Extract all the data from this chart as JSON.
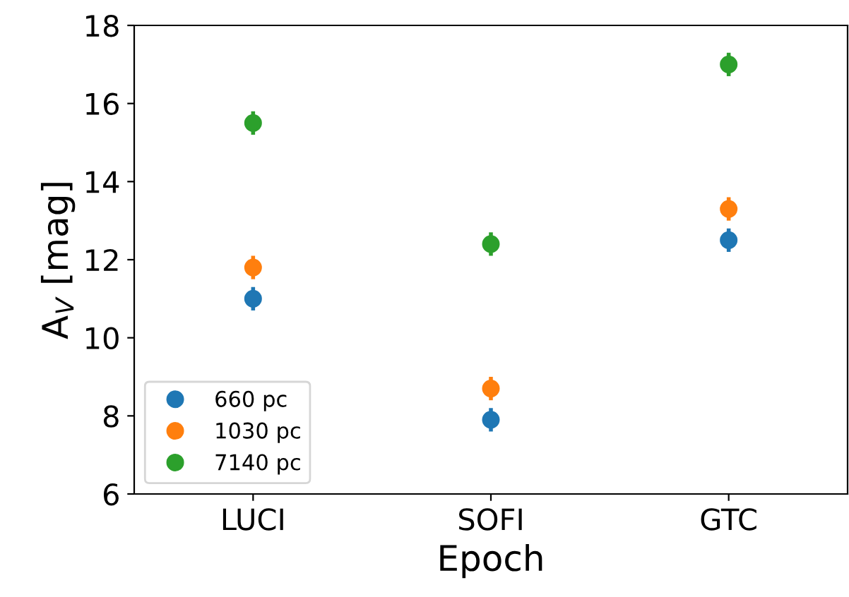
{
  "chart_data": {
    "type": "scatter",
    "xlabel": "Epoch",
    "ylabel": "A$_{V}$ [mag]",
    "categories": [
      "LUCI",
      "SOFI",
      "GTC"
    ],
    "series": [
      {
        "name": "660 pc",
        "color": "#1f77b4",
        "values": [
          11.0,
          7.9,
          12.5
        ],
        "errors": [
          0.3,
          0.3,
          0.3
        ]
      },
      {
        "name": "1030 pc",
        "color": "#ff7f0e",
        "values": [
          11.8,
          8.7,
          13.3
        ],
        "errors": [
          0.3,
          0.3,
          0.3
        ]
      },
      {
        "name": "7140 pc",
        "color": "#2ca02c",
        "values": [
          15.5,
          12.4,
          17.0
        ],
        "errors": [
          0.3,
          0.3,
          0.3
        ]
      }
    ],
    "ylim": [
      6,
      18
    ],
    "yticks": [
      6,
      8,
      10,
      12,
      14,
      16,
      18
    ],
    "grid": false,
    "legend": "bottom left",
    "marker": "circle"
  }
}
